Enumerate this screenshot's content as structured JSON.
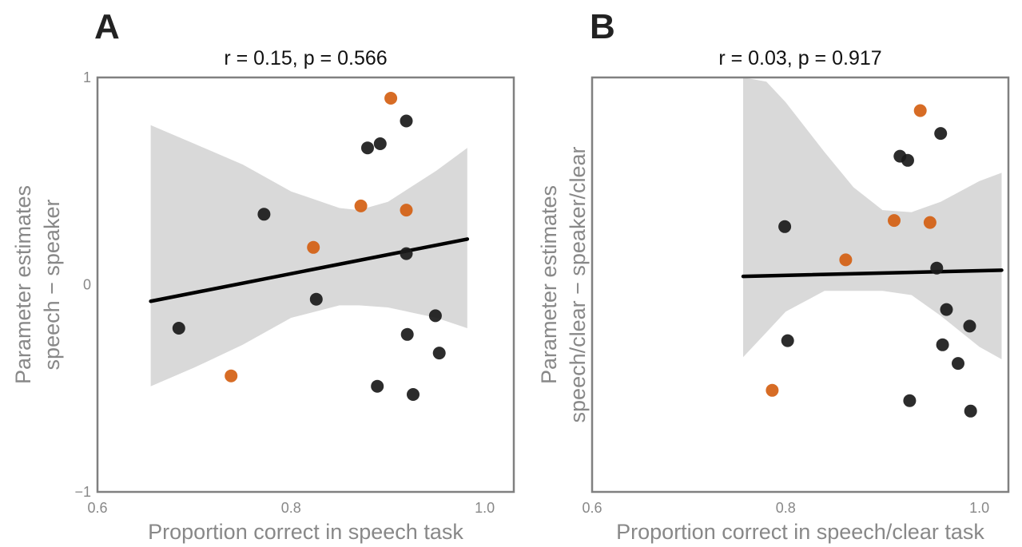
{
  "chart_data": [
    {
      "panel_label": "A",
      "type": "scatter",
      "title": "r = 0.15, p = 0.566",
      "xlabel": "Proportion correct in speech task",
      "ylabel": [
        "Parameter estimates",
        "speech − speaker"
      ],
      "xlim": [
        0.6,
        1.03
      ],
      "ylim": [
        -1,
        1
      ],
      "xticks": [
        {
          "value": 0.6,
          "label": "0.6"
        },
        {
          "value": 0.8,
          "label": "0.8"
        },
        {
          "value": 1.0,
          "label": "1.0"
        }
      ],
      "yticks": [
        {
          "value": -1,
          "label": "−1"
        },
        {
          "value": 0,
          "label": "0"
        },
        {
          "value": 1,
          "label": "1"
        }
      ],
      "grid": false,
      "series": [
        {
          "color": "#1a1a1a",
          "points": [
            {
              "x": 0.684,
              "y": -0.21
            },
            {
              "x": 0.772,
              "y": 0.34
            },
            {
              "x": 0.826,
              "y": -0.07
            },
            {
              "x": 0.879,
              "y": 0.66
            },
            {
              "x": 0.889,
              "y": -0.49
            },
            {
              "x": 0.892,
              "y": 0.68
            },
            {
              "x": 0.919,
              "y": 0.79
            },
            {
              "x": 0.919,
              "y": 0.15
            },
            {
              "x": 0.92,
              "y": -0.24
            },
            {
              "x": 0.926,
              "y": -0.53
            },
            {
              "x": 0.949,
              "y": -0.15
            },
            {
              "x": 0.953,
              "y": -0.33
            }
          ]
        },
        {
          "color": "#d45f12",
          "points": [
            {
              "x": 0.738,
              "y": -0.44
            },
            {
              "x": 0.823,
              "y": 0.18
            },
            {
              "x": 0.872,
              "y": 0.38
            },
            {
              "x": 0.903,
              "y": 0.9
            },
            {
              "x": 0.919,
              "y": 0.36
            }
          ]
        }
      ],
      "fit_line": {
        "x": [
          0.655,
          0.982
        ],
        "y": [
          -0.08,
          0.22
        ],
        "color": "#000000"
      },
      "confidence_band": {
        "color": "#d9d9d9",
        "x": [
          0.655,
          0.7,
          0.75,
          0.8,
          0.85,
          0.87,
          0.9,
          0.95,
          0.982
        ],
        "upper": [
          0.77,
          0.68,
          0.58,
          0.45,
          0.37,
          0.36,
          0.4,
          0.55,
          0.66
        ],
        "lower": [
          -0.49,
          -0.4,
          -0.29,
          -0.16,
          -0.1,
          -0.1,
          -0.11,
          -0.16,
          -0.21
        ]
      }
    },
    {
      "panel_label": "B",
      "type": "scatter",
      "title": "r = 0.03, p = 0.917",
      "xlabel": "Proportion correct in speech/clear task",
      "ylabel": [
        "Parameter estimates",
        "speech/clear − speaker/clear"
      ],
      "xlim": [
        0.6,
        1.03
      ],
      "ylim": [
        -1,
        1
      ],
      "xticks": [
        {
          "value": 0.6,
          "label": "0.6"
        },
        {
          "value": 0.8,
          "label": "0.8"
        },
        {
          "value": 1.0,
          "label": "1.0"
        }
      ],
      "yticks": [],
      "grid": false,
      "series": [
        {
          "color": "#1a1a1a",
          "points": [
            {
              "x": 0.799,
              "y": 0.28
            },
            {
              "x": 0.802,
              "y": -0.27
            },
            {
              "x": 0.918,
              "y": 0.62
            },
            {
              "x": 0.926,
              "y": 0.6
            },
            {
              "x": 0.928,
              "y": -0.56
            },
            {
              "x": 0.956,
              "y": 0.08
            },
            {
              "x": 0.96,
              "y": 0.73
            },
            {
              "x": 0.962,
              "y": -0.29
            },
            {
              "x": 0.966,
              "y": -0.12
            },
            {
              "x": 0.978,
              "y": -0.38
            },
            {
              "x": 0.99,
              "y": -0.2
            },
            {
              "x": 0.991,
              "y": -0.61
            }
          ]
        },
        {
          "color": "#d45f12",
          "points": [
            {
              "x": 0.786,
              "y": -0.51
            },
            {
              "x": 0.862,
              "y": 0.12
            },
            {
              "x": 0.912,
              "y": 0.31
            },
            {
              "x": 0.939,
              "y": 0.84
            },
            {
              "x": 0.949,
              "y": 0.3
            }
          ]
        }
      ],
      "fit_line": {
        "x": [
          0.756,
          1.023
        ],
        "y": [
          0.04,
          0.07
        ],
        "color": "#000000"
      },
      "confidence_band": {
        "color": "#d9d9d9",
        "x": [
          0.756,
          0.78,
          0.8,
          0.84,
          0.87,
          0.9,
          0.93,
          0.96,
          1.0,
          1.023
        ],
        "upper": [
          1.0,
          0.98,
          0.88,
          0.64,
          0.47,
          0.36,
          0.35,
          0.4,
          0.5,
          0.54
        ],
        "lower": [
          -0.35,
          -0.23,
          -0.13,
          -0.03,
          -0.03,
          -0.03,
          -0.05,
          -0.15,
          -0.3,
          -0.36
        ]
      }
    }
  ]
}
